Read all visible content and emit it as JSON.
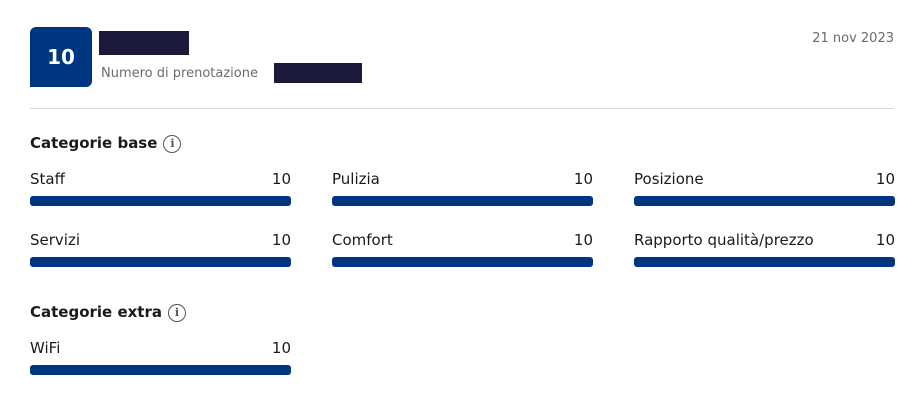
{
  "header": {
    "score": 10,
    "booking_label": "Numero di prenotazione",
    "date": "21 nov 2023"
  },
  "sections": [
    {
      "title": "Categorie base",
      "items": [
        {
          "label": "Staff",
          "score": 10
        },
        {
          "label": "Pulizia",
          "score": 10
        },
        {
          "label": "Posizione",
          "score": 10
        },
        {
          "label": "Servizi",
          "score": 10
        },
        {
          "label": "Comfort",
          "score": 10
        },
        {
          "label": "Rapporto qualità/prezzo",
          "score": 10
        }
      ]
    },
    {
      "title": "Categorie extra",
      "items": [
        {
          "label": "WiFi",
          "score": 10
        }
      ]
    }
  ]
}
